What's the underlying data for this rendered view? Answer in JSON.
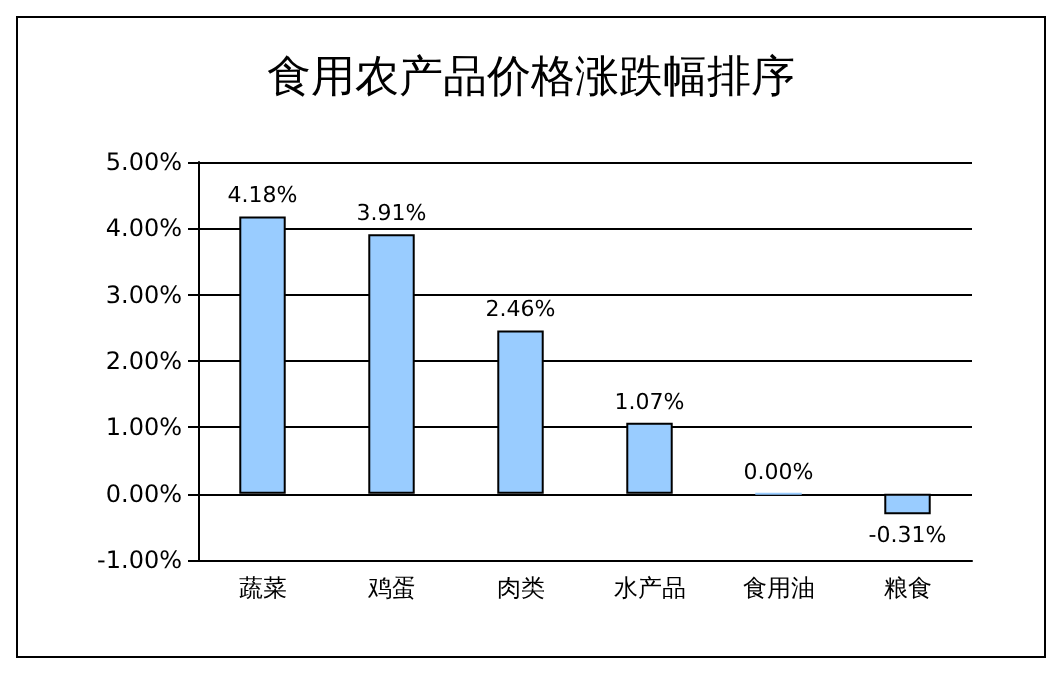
{
  "chart_data": {
    "type": "bar",
    "title": "食用农产品价格涨跌幅排序",
    "categories": [
      "蔬菜",
      "鸡蛋",
      "肉类",
      "水产品",
      "食用油",
      "粮食"
    ],
    "values": [
      4.18,
      3.91,
      2.46,
      1.07,
      0.0,
      -0.31
    ],
    "value_labels": [
      "4.18%",
      "3.91%",
      "2.46%",
      "1.07%",
      "0.00%",
      "-0.31%"
    ],
    "color": "#99ccff",
    "ylim": [
      -1,
      5
    ],
    "yticks": [
      {
        "value": -1,
        "label": "-1.00%"
      },
      {
        "value": 0,
        "label": "0.00%"
      },
      {
        "value": 1,
        "label": "1.00%"
      },
      {
        "value": 2,
        "label": "2.00%"
      },
      {
        "value": 3,
        "label": "3.00%"
      },
      {
        "value": 4,
        "label": "4.00%"
      },
      {
        "value": 5,
        "label": "5.00%"
      }
    ],
    "grid": "y"
  }
}
